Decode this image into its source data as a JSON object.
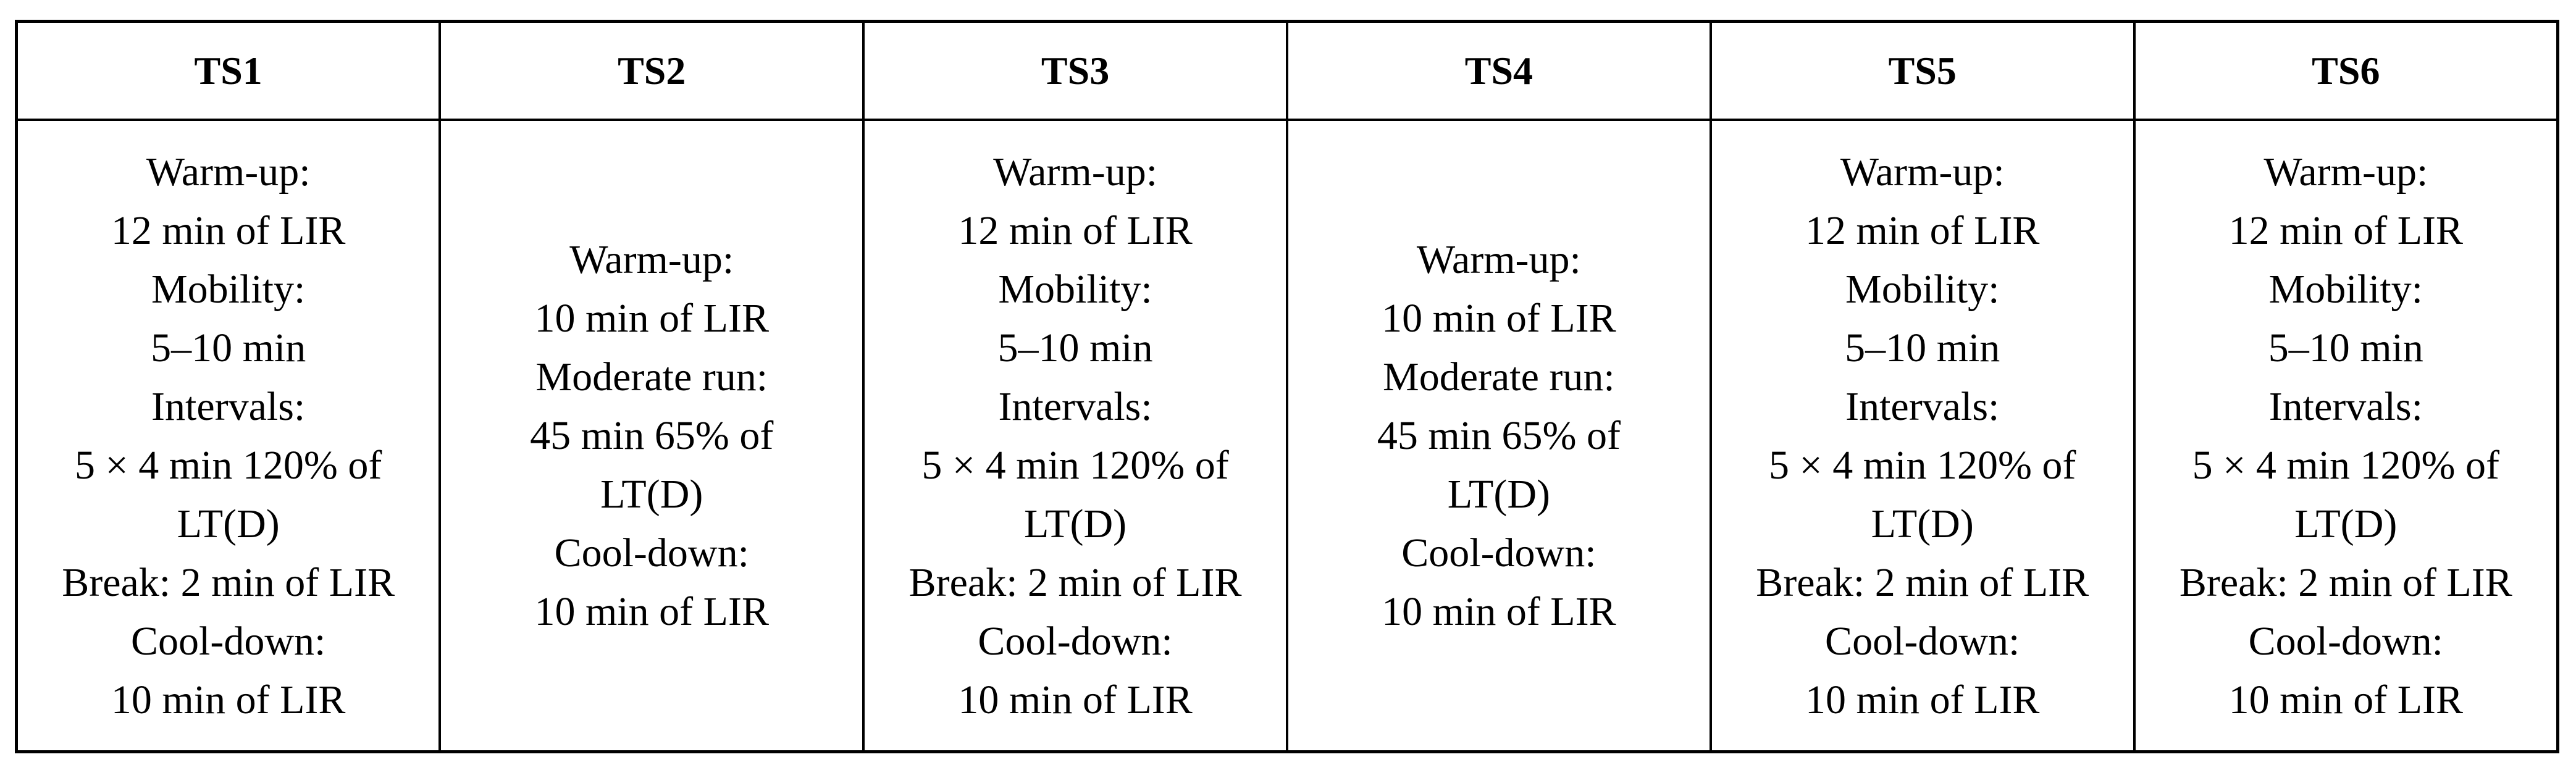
{
  "table": {
    "columns": [
      {
        "header": "TS1",
        "lines": [
          "Warm-up:",
          "12 min of LIR",
          "Mobility:",
          "5–10 min",
          "Intervals:",
          "5 × 4 min 120% of",
          "LT(D)",
          "Break: 2 min of LIR",
          "Cool-down:",
          "10 min of LIR"
        ]
      },
      {
        "header": "TS2",
        "lines": [
          "Warm-up:",
          "10 min of LIR",
          "Moderate run:",
          "45 min 65% of",
          "LT(D)",
          "Cool-down:",
          "10 min of LIR"
        ]
      },
      {
        "header": "TS3",
        "lines": [
          "Warm-up:",
          "12 min of LIR",
          "Mobility:",
          "5–10 min",
          "Intervals:",
          "5 × 4 min 120% of",
          "LT(D)",
          "Break: 2 min of LIR",
          "Cool-down:",
          "10 min of LIR"
        ]
      },
      {
        "header": "TS4",
        "lines": [
          "Warm-up:",
          "10 min of LIR",
          "Moderate run:",
          "45 min 65% of",
          "LT(D)",
          "Cool-down:",
          "10 min of LIR"
        ]
      },
      {
        "header": "TS5",
        "lines": [
          "Warm-up:",
          "12 min of LIR",
          "Mobility:",
          "5–10 min",
          "Intervals:",
          "5 × 4 min 120% of",
          "LT(D)",
          "Break: 2 min of LIR",
          "Cool-down:",
          "10 min of LIR"
        ]
      },
      {
        "header": "TS6",
        "lines": [
          "Warm-up:",
          "12 min of LIR",
          "Mobility:",
          "5–10 min",
          "Intervals:",
          "5 × 4 min 120% of",
          "LT(D)",
          "Break: 2 min of LIR",
          "Cool-down:",
          "10 min of LIR"
        ]
      }
    ]
  }
}
